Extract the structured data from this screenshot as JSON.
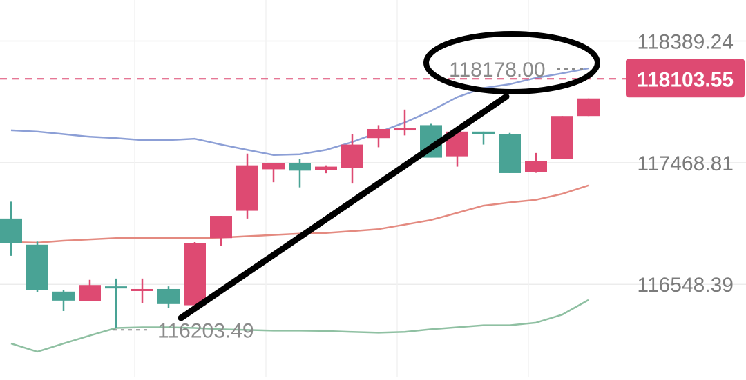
{
  "chart_data": {
    "type": "candlestick",
    "title": "",
    "y_axis_ticks": [
      "118389.24",
      "117468.81",
      "116548.39"
    ],
    "y_axis_tick_values": [
      118389.24,
      117468.81,
      116548.39
    ],
    "ylim": [
      115850,
      118700
    ],
    "current_price": {
      "label": "118103.55",
      "value": 118103.55,
      "color": "#de4a72"
    },
    "high_marker": {
      "label": "118178.00",
      "value": 118178.0
    },
    "low_marker": {
      "label": "116203.49",
      "value": 116203.49
    },
    "up_color": "#de4a72",
    "down_color": "#49a395",
    "candles": [
      {
        "open": 117046,
        "close": 116858,
        "high": 117174,
        "low": 116764
      },
      {
        "open": 116848,
        "close": 116503,
        "high": 116872,
        "low": 116487
      },
      {
        "open": 116493,
        "close": 116425,
        "high": 116503,
        "low": 116346
      },
      {
        "open": 116419,
        "close": 116543,
        "high": 116582,
        "low": 116419
      },
      {
        "open": 116533,
        "close": 116518,
        "high": 116592,
        "low": 116218
      },
      {
        "open": 116508,
        "close": 116513,
        "high": 116592,
        "low": 116405
      },
      {
        "open": 116513,
        "close": 116399,
        "high": 116533,
        "low": 116370
      },
      {
        "open": 116390,
        "close": 116858,
        "high": 116868,
        "low": 116346
      },
      {
        "open": 116898,
        "close": 117066,
        "high": 117066,
        "low": 116838
      },
      {
        "open": 117105,
        "close": 117449,
        "high": 117537,
        "low": 117046
      },
      {
        "open": 117419,
        "close": 117468,
        "high": 117468,
        "low": 117321
      },
      {
        "open": 117468,
        "close": 117409,
        "high": 117498,
        "low": 117282
      },
      {
        "open": 117414,
        "close": 117439,
        "high": 117449,
        "low": 117389
      },
      {
        "open": 117429,
        "close": 117606,
        "high": 117685,
        "low": 117311
      },
      {
        "open": 117655,
        "close": 117724,
        "high": 117753,
        "low": 117586
      },
      {
        "open": 117724,
        "close": 117729,
        "high": 117871,
        "low": 117675
      },
      {
        "open": 117753,
        "close": 117507,
        "high": 117763,
        "low": 117507
      },
      {
        "open": 117517,
        "close": 117704,
        "high": 117704,
        "low": 117439
      },
      {
        "open": 117704,
        "close": 117685,
        "high": 117704,
        "low": 117606
      },
      {
        "open": 117685,
        "close": 117390,
        "high": 117694,
        "low": 117390
      },
      {
        "open": 117398,
        "close": 117483,
        "high": 117542,
        "low": 117392
      },
      {
        "open": 117498,
        "close": 117822,
        "high": 117822,
        "low": 117498
      },
      {
        "open": 117822,
        "close": 117955,
        "high": 117955,
        "low": 117822
      }
    ],
    "upper_band": [
      117714,
      117704,
      117685,
      117665,
      117655,
      117640,
      117640,
      117650,
      117606,
      117566,
      117527,
      117532,
      117566,
      117625,
      117699,
      117773,
      117861,
      117965,
      118034,
      118063,
      118111,
      118145,
      118183
    ],
    "middle_band": [
      116868,
      116863,
      116878,
      116888,
      116898,
      116898,
      116898,
      116898,
      116902,
      116912,
      116922,
      116932,
      116937,
      116951,
      116966,
      117000,
      117035,
      117089,
      117144,
      117168,
      117188,
      117233,
      117297
    ],
    "lower_band": [
      116100,
      116038,
      116100,
      116160,
      116218,
      116223,
      116223,
      116218,
      116208,
      116203,
      116198,
      116198,
      116195,
      116188,
      116182,
      116188,
      116208,
      116223,
      116238,
      116238,
      116258,
      116319,
      116430
    ],
    "upper_band_color": "#8c9fd6",
    "middle_band_color": "#e48a80",
    "lower_band_color": "#8fc0a2"
  }
}
